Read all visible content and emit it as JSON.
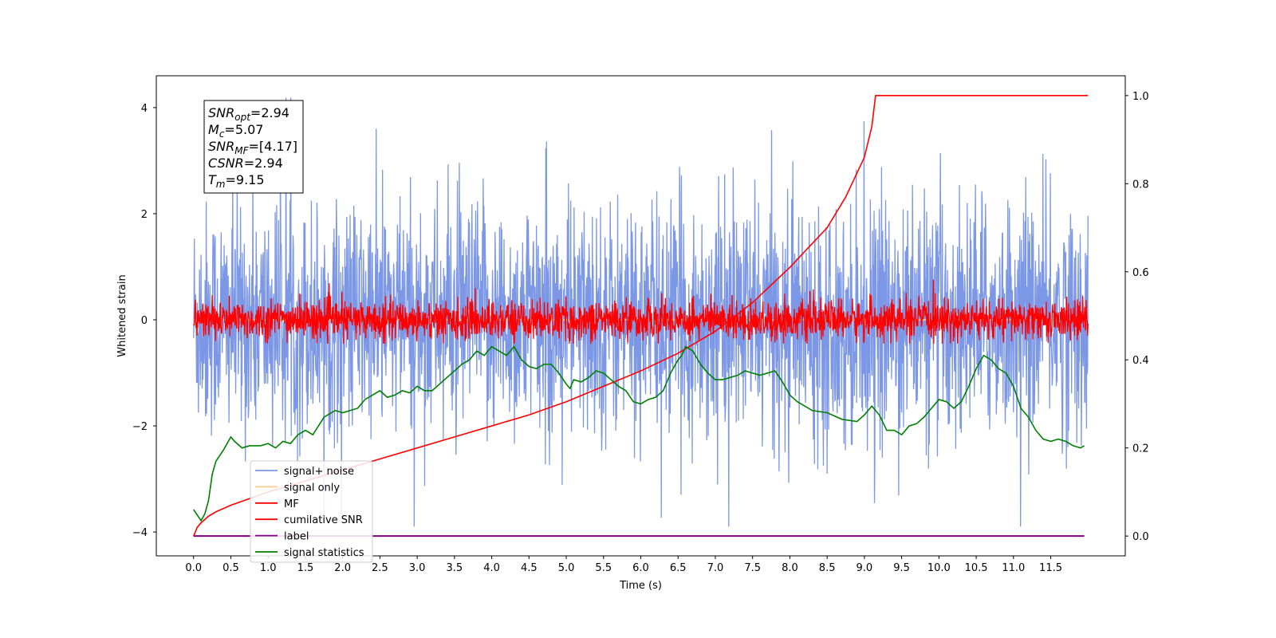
{
  "chart_data": {
    "type": "line",
    "xlabel": "Time (s)",
    "ylabel": "Whitened strain",
    "xlim": [
      -0.5,
      12.5
    ],
    "ylim": [
      -4.45,
      4.6
    ],
    "y2lim": [
      -0.045,
      1.045
    ],
    "x_ticks": [
      0.0,
      0.5,
      1.0,
      1.5,
      2.0,
      2.5,
      3.0,
      3.5,
      4.0,
      4.5,
      5.0,
      5.5,
      6.0,
      6.5,
      7.0,
      7.5,
      8.0,
      8.5,
      9.0,
      9.5,
      10.0,
      10.5,
      11.0,
      11.5
    ],
    "x_tick_labels": [
      "0.0",
      "0.5",
      "1.0",
      "1.5",
      "2.0",
      "2.5",
      "3.0",
      "3.5",
      "4.0",
      "4.5",
      "5.0",
      "5.5",
      "6.0",
      "6.5",
      "7.0",
      "7.5",
      "8.0",
      "8.5",
      "9.0",
      "9.5",
      "10.0",
      "10.5",
      "11.0",
      "11.5"
    ],
    "y_ticks": [
      -4,
      -2,
      0,
      2,
      4
    ],
    "y_tick_labels": [
      "−4",
      "−2",
      "0",
      "2",
      "4"
    ],
    "y2_ticks": [
      0.0,
      0.2,
      0.4,
      0.6,
      0.8,
      1.0
    ],
    "y2_tick_labels": [
      "0.0",
      "0.2",
      "0.4",
      "0.6",
      "0.8",
      "1.0"
    ],
    "grid": false,
    "legend_position": "lower-left",
    "colors": {
      "signal_noise": "#7b97e6",
      "signal_only": "#ffcc88",
      "mf": "#ff0000",
      "csnr": "#ff0000",
      "label": "#800080",
      "signal_stats": "#007f00"
    },
    "annotation": {
      "lines": [
        {
          "base": "SNR",
          "sub": "opt",
          "value": "=2.94"
        },
        {
          "base": "M",
          "sub": "c",
          "value": "=5.07"
        },
        {
          "base": "SNR",
          "sub": "MF",
          "value": "=[4.17]"
        },
        {
          "base": "CSNR",
          "sub": "",
          "value": "=2.94"
        },
        {
          "base": "T",
          "sub": "m",
          "value": "=9.15"
        }
      ]
    },
    "series": [
      {
        "name": "signal+ noise",
        "axis": "left",
        "kind": "noise",
        "x_range": [
          0,
          12
        ],
        "approx_range": [
          -3.9,
          4.2
        ],
        "spread": 1.1
      },
      {
        "name": "signal only",
        "axis": "left",
        "kind": "flat",
        "x_range": [
          0,
          12
        ],
        "values": [
          0
        ]
      },
      {
        "name": "MF",
        "axis": "left",
        "kind": "noise",
        "x_range": [
          0,
          12
        ],
        "approx_range": [
          -0.45,
          1.0
        ],
        "spread": 0.18
      },
      {
        "name": "cumilative SNR",
        "axis": "right",
        "x": [
          0.0,
          0.05,
          0.1,
          0.2,
          0.3,
          0.5,
          0.75,
          1.0,
          1.5,
          2.0,
          2.5,
          3.0,
          3.5,
          4.0,
          4.5,
          5.0,
          5.5,
          6.0,
          6.5,
          7.0,
          7.5,
          8.0,
          8.5,
          8.75,
          9.0,
          9.1,
          9.15,
          12.0
        ],
        "y": [
          0.0,
          0.02,
          0.03,
          0.045,
          0.055,
          0.07,
          0.085,
          0.1,
          0.125,
          0.15,
          0.175,
          0.2,
          0.225,
          0.25,
          0.275,
          0.305,
          0.34,
          0.375,
          0.415,
          0.465,
          0.53,
          0.61,
          0.7,
          0.77,
          0.86,
          0.93,
          1.0,
          1.0
        ]
      },
      {
        "name": "label",
        "axis": "right",
        "x": [
          0.0,
          11.95
        ],
        "y": [
          0.0,
          0.0
        ]
      },
      {
        "name": "signal statistics",
        "axis": "right",
        "x": [
          0.0,
          0.1,
          0.15,
          0.2,
          0.25,
          0.3,
          0.4,
          0.5,
          0.55,
          0.65,
          0.75,
          0.9,
          1.0,
          1.1,
          1.2,
          1.3,
          1.4,
          1.5,
          1.6,
          1.75,
          1.9,
          2.0,
          2.1,
          2.2,
          2.3,
          2.4,
          2.5,
          2.6,
          2.7,
          2.8,
          2.9,
          3.0,
          3.1,
          3.2,
          3.3,
          3.4,
          3.5,
          3.6,
          3.7,
          3.8,
          3.9,
          4.0,
          4.1,
          4.2,
          4.3,
          4.4,
          4.5,
          4.6,
          4.7,
          4.8,
          4.9,
          5.0,
          5.05,
          5.1,
          5.2,
          5.3,
          5.4,
          5.5,
          5.6,
          5.7,
          5.8,
          5.9,
          6.0,
          6.1,
          6.2,
          6.3,
          6.4,
          6.5,
          6.55,
          6.6,
          6.7,
          6.8,
          6.9,
          7.0,
          7.1,
          7.2,
          7.3,
          7.4,
          7.5,
          7.6,
          7.7,
          7.8,
          7.9,
          8.0,
          8.1,
          8.2,
          8.3,
          8.5,
          8.7,
          8.9,
          9.0,
          9.1,
          9.2,
          9.3,
          9.4,
          9.5,
          9.6,
          9.7,
          9.8,
          9.9,
          10.0,
          10.1,
          10.2,
          10.3,
          10.4,
          10.5,
          10.6,
          10.7,
          10.8,
          10.9,
          11.0,
          11.1,
          11.2,
          11.3,
          11.4,
          11.5,
          11.6,
          11.7,
          11.8,
          11.9,
          11.95
        ],
        "y": [
          0.06,
          0.035,
          0.05,
          0.08,
          0.14,
          0.17,
          0.195,
          0.225,
          0.215,
          0.2,
          0.205,
          0.205,
          0.21,
          0.2,
          0.215,
          0.21,
          0.23,
          0.24,
          0.23,
          0.27,
          0.285,
          0.28,
          0.285,
          0.29,
          0.31,
          0.32,
          0.33,
          0.315,
          0.32,
          0.33,
          0.325,
          0.34,
          0.33,
          0.33,
          0.345,
          0.36,
          0.375,
          0.39,
          0.4,
          0.42,
          0.41,
          0.43,
          0.42,
          0.41,
          0.43,
          0.4,
          0.385,
          0.38,
          0.39,
          0.39,
          0.37,
          0.345,
          0.335,
          0.355,
          0.35,
          0.36,
          0.375,
          0.37,
          0.355,
          0.34,
          0.33,
          0.305,
          0.3,
          0.31,
          0.315,
          0.33,
          0.37,
          0.4,
          0.41,
          0.43,
          0.42,
          0.39,
          0.37,
          0.355,
          0.355,
          0.36,
          0.365,
          0.375,
          0.37,
          0.365,
          0.37,
          0.375,
          0.35,
          0.32,
          0.305,
          0.295,
          0.285,
          0.28,
          0.265,
          0.26,
          0.275,
          0.295,
          0.275,
          0.24,
          0.24,
          0.23,
          0.25,
          0.255,
          0.27,
          0.29,
          0.31,
          0.305,
          0.29,
          0.305,
          0.34,
          0.38,
          0.41,
          0.4,
          0.38,
          0.37,
          0.34,
          0.29,
          0.27,
          0.24,
          0.22,
          0.215,
          0.22,
          0.215,
          0.205,
          0.2,
          0.205
        ]
      }
    ]
  }
}
